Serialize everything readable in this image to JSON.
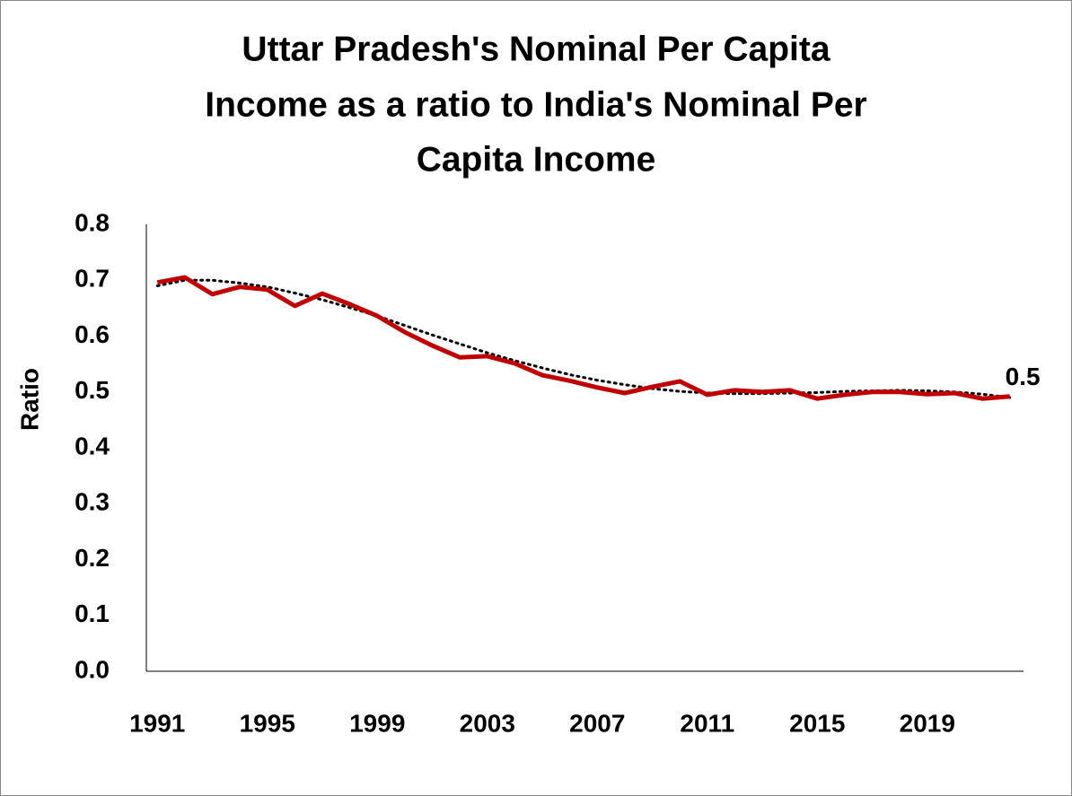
{
  "chart_data": {
    "type": "line",
    "title": [
      "Uttar Pradesh's Nominal Per Capita",
      "Income as a ratio to India's Nominal Per",
      "Capita Income"
    ],
    "y_label": "Ratio",
    "x": [
      1991,
      1992,
      1993,
      1994,
      1995,
      1996,
      1997,
      1998,
      1999,
      2000,
      2001,
      2002,
      2003,
      2004,
      2005,
      2006,
      2007,
      2008,
      2009,
      2010,
      2011,
      2012,
      2013,
      2014,
      2015,
      2016,
      2017,
      2018,
      2019,
      2020,
      2021,
      2022
    ],
    "series": [
      {
        "color": "#c00000",
        "values": [
          0.696,
          0.705,
          0.675,
          0.688,
          0.683,
          0.654,
          0.676,
          0.657,
          0.636,
          0.607,
          0.583,
          0.562,
          0.564,
          0.551,
          0.53,
          0.52,
          0.508,
          0.498,
          0.509,
          0.519,
          0.495,
          0.503,
          0.5,
          0.503,
          0.488,
          0.495,
          0.5,
          0.5,
          0.496,
          0.498,
          0.488,
          0.492
        ],
        "value_labels": [
          null,
          null,
          null,
          null,
          null,
          null,
          null,
          null,
          null,
          null,
          null,
          null,
          null,
          null,
          null,
          null,
          null,
          null,
          null,
          null,
          null,
          null,
          null,
          null,
          null,
          null,
          null,
          null,
          null,
          null,
          null,
          "0.5"
        ]
      }
    ],
    "trendline": {
      "color": "#000000",
      "values": [
        0.69,
        0.7,
        0.7,
        0.695,
        0.688,
        0.677,
        0.665,
        0.651,
        0.636,
        0.619,
        0.602,
        0.586,
        0.57,
        0.556,
        0.543,
        0.531,
        0.521,
        0.513,
        0.506,
        0.501,
        0.498,
        0.497,
        0.497,
        0.498,
        0.499,
        0.501,
        0.502,
        0.503,
        0.502,
        0.5,
        0.496,
        0.49
      ]
    },
    "xlim": [
      1990.6,
      2022.5
    ],
    "xticks": [
      1991,
      1995,
      1999,
      2003,
      2007,
      2011,
      2015,
      2019
    ],
    "ylim": [
      0,
      0.8
    ],
    "yticks": [
      {
        "value": 0,
        "label": "0.0"
      },
      0.1,
      0.2,
      0.3,
      0.4,
      0.5,
      0.6,
      0.7,
      0.8
    ]
  }
}
